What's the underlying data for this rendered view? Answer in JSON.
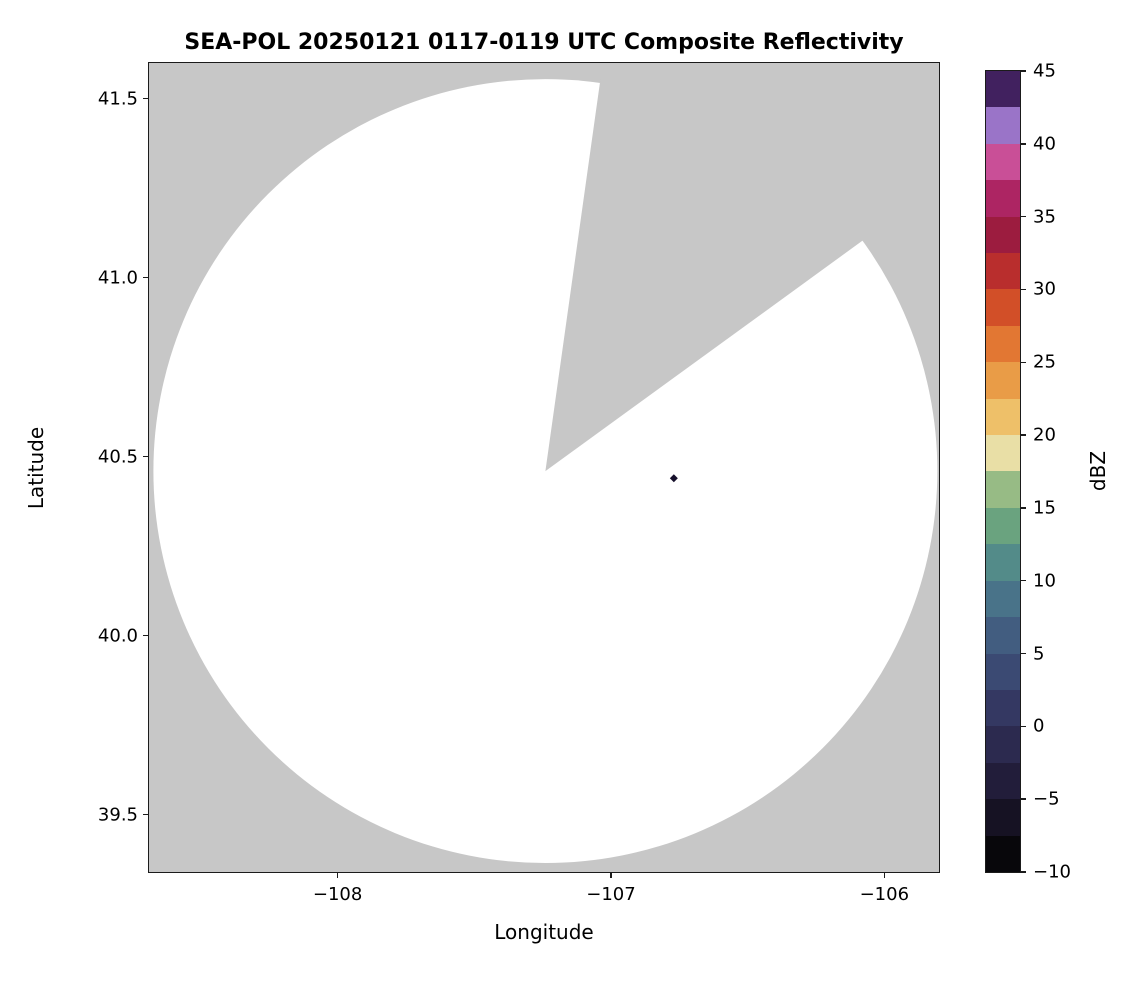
{
  "chart_data": {
    "type": "heatmap",
    "title": "SEA-POL 20250121 0117-0119 UTC Composite Reflectivity",
    "xlabel": "Longitude",
    "ylabel": "Latitude",
    "xlim": [
      -108.69,
      -105.8
    ],
    "ylim": [
      39.34,
      41.6
    ],
    "x_ticks": [
      -108,
      -107,
      -106
    ],
    "x_tick_labels": [
      "−108",
      "−107",
      "−106"
    ],
    "y_ticks": [
      41.5,
      41.0,
      40.5,
      40.0,
      39.5
    ],
    "y_tick_labels": [
      "41.5",
      "41.0",
      "40.5",
      "40.0",
      "39.5"
    ],
    "grid": false,
    "colors": {
      "no_data": "#c7c7c7",
      "no_echo_coverage": "#ffffff",
      "echo_marker": "#17102c"
    },
    "radar_coverage": {
      "center_lon": -107.24,
      "center_lat": 40.46,
      "radius_deg_lat": 1.095,
      "blocked_sector_azimuth_deg": [
        8,
        54
      ]
    },
    "echoes": [
      {
        "lon": -106.77,
        "lat": 40.44,
        "approx_dbz": 45
      }
    ],
    "colorbar": {
      "label": "dBZ",
      "min": -10,
      "max": 45,
      "ticks": [
        45,
        40,
        35,
        30,
        25,
        20,
        15,
        10,
        5,
        0,
        -5,
        -10
      ],
      "tick_labels": [
        "45",
        "40",
        "35",
        "30",
        "25",
        "20",
        "15",
        "10",
        "5",
        "0",
        "−5",
        "−10"
      ],
      "colors_bottom_to_top": [
        "#08070b",
        "#161223",
        "#221d3a",
        "#2c2a4f",
        "#343862",
        "#3b4a73",
        "#425d80",
        "#497389",
        "#538b89",
        "#6aa37f",
        "#97bb85",
        "#e9dfa6",
        "#eec069",
        "#e99c47",
        "#e27733",
        "#d24f28",
        "#b92e2d",
        "#9c1c3f",
        "#ad2563",
        "#c94f97",
        "#9a74c8",
        "#41215f"
      ]
    }
  }
}
